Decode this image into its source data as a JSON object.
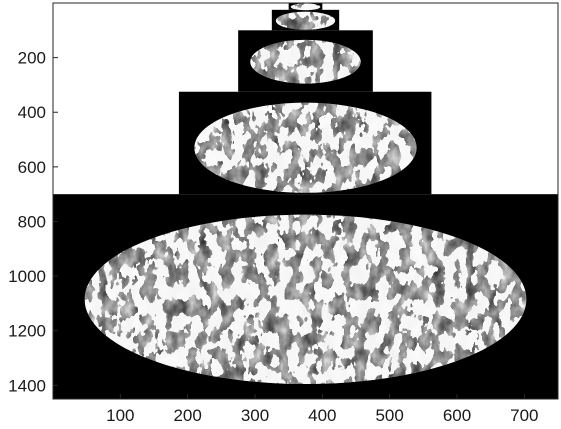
{
  "chart_data": {
    "type": "image",
    "xlim": [
      0,
      750
    ],
    "ylim": [
      0,
      1450
    ],
    "y_reversed": true,
    "grid": false,
    "xticks": [
      100,
      200,
      300,
      400,
      500,
      600,
      700
    ],
    "yticks": [
      200,
      400,
      600,
      800,
      1000,
      1200,
      1400
    ],
    "xtick_labels": [
      "100",
      "200",
      "300",
      "400",
      "500",
      "600",
      "700"
    ],
    "ytick_labels": [
      "200",
      "400",
      "600",
      "800",
      "1000",
      "1200",
      "1400"
    ],
    "colors": {
      "background": "#ffffff",
      "mask": "#000000",
      "texture_light": "#f2f2f2",
      "texture_dark": "#111111"
    },
    "pyramid_levels": [
      {
        "level": 5,
        "x": [
          350,
          400
        ],
        "y": [
          0,
          25
        ]
      },
      {
        "level": 4,
        "x": [
          325,
          425
        ],
        "y": [
          25,
          100
        ]
      },
      {
        "level": 3,
        "x": [
          275,
          475
        ],
        "y": [
          100,
          325
        ]
      },
      {
        "level": 2,
        "x": [
          187,
          562
        ],
        "y": [
          325,
          700
        ]
      },
      {
        "level": 1,
        "x": [
          0,
          750
        ],
        "y": [
          700,
          1450
        ]
      }
    ],
    "ellipses": [
      {
        "level": 5,
        "cx": 375,
        "cy": 14,
        "rx": 22,
        "ry": 12
      },
      {
        "level": 4,
        "cx": 375,
        "cy": 65,
        "rx": 44,
        "ry": 33
      },
      {
        "level": 3,
        "cx": 375,
        "cy": 215,
        "rx": 82,
        "ry": 80
      },
      {
        "level": 2,
        "cx": 375,
        "cy": 530,
        "rx": 165,
        "ry": 165
      },
      {
        "level": 1,
        "cx": 375,
        "cy": 1085,
        "rx": 328,
        "ry": 310
      }
    ]
  }
}
